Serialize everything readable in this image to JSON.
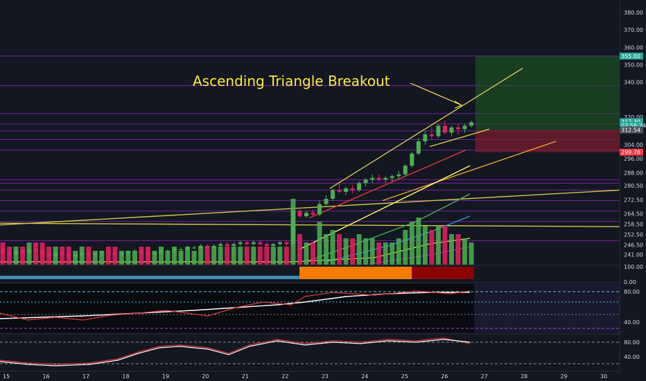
{
  "chart_data": {
    "type": "candlestick",
    "annotation": "Ascending Triangle Breakout",
    "price_axis": {
      "range": [
        236,
        384
      ],
      "ticks": [
        380.0,
        370.0,
        360.0,
        350.0,
        340.0,
        320.0,
        304.0,
        296.0,
        288.0,
        280.5,
        272.5,
        264.5,
        258.5,
        252.5,
        246.5,
        241.0
      ]
    },
    "price_tags": [
      {
        "value": 355.0,
        "label": "355.00",
        "color": "#26a69a"
      },
      {
        "value": 317.3,
        "label": "317.30",
        "color": "#26a69a"
      },
      {
        "value": 315.2,
        "label": "02:56:24",
        "color": "#26a69a"
      },
      {
        "value": 312.54,
        "label": "312.54",
        "color": "#4a4e5a"
      },
      {
        "value": 299.78,
        "label": "299.78",
        "color": "#f23645"
      }
    ],
    "x_axis": {
      "labels": [
        "15",
        "16",
        "17",
        "18",
        "19",
        "20",
        "21",
        "22",
        "23",
        "24",
        "25",
        "26",
        "27",
        "28",
        "29",
        "30"
      ]
    },
    "horizontal_levels": [
      355,
      338,
      322,
      316,
      312,
      307,
      301,
      284,
      282,
      278,
      272,
      266,
      260,
      249
    ],
    "candles": [
      [
        244,
        245,
        241,
        242
      ],
      [
        242,
        243,
        240,
        241
      ],
      [
        241,
        243,
        240,
        243
      ],
      [
        243,
        244,
        241,
        242
      ],
      [
        242,
        245,
        241,
        244
      ],
      [
        244,
        246,
        242,
        243
      ],
      [
        243,
        244,
        240,
        241
      ],
      [
        241,
        242,
        239,
        240
      ],
      [
        240,
        242,
        239,
        242
      ],
      [
        242,
        243,
        240,
        241
      ],
      [
        241,
        242,
        239,
        240
      ],
      [
        240,
        241,
        239,
        241
      ],
      [
        241,
        243,
        240,
        242
      ],
      [
        242,
        243,
        240,
        241
      ],
      [
        241,
        242,
        240,
        242
      ],
      [
        242,
        243,
        241,
        243
      ],
      [
        243,
        244,
        241,
        242
      ],
      [
        242,
        243,
        240,
        241
      ],
      [
        241,
        242,
        240,
        242
      ],
      [
        242,
        243,
        241,
        243
      ],
      [
        243,
        244,
        242,
        243
      ],
      [
        243,
        244,
        241,
        242
      ],
      [
        242,
        243,
        240,
        241
      ],
      [
        241,
        242,
        240,
        242
      ],
      [
        242,
        244,
        241,
        243
      ],
      [
        243,
        244,
        242,
        243
      ],
      [
        243,
        245,
        242,
        244
      ],
      [
        244,
        245,
        243,
        244
      ],
      [
        244,
        246,
        243,
        245
      ],
      [
        245,
        246,
        244,
        245
      ],
      [
        245,
        247,
        244,
        246
      ],
      [
        246,
        247,
        244,
        245
      ],
      [
        245,
        247,
        244,
        246
      ],
      [
        246,
        248,
        245,
        247
      ],
      [
        247,
        248,
        245,
        246
      ],
      [
        246,
        248,
        245,
        247
      ],
      [
        247,
        249,
        246,
        248
      ],
      [
        248,
        249,
        246,
        247
      ],
      [
        247,
        249,
        246,
        248
      ],
      [
        248,
        249,
        246,
        247
      ],
      [
        247,
        248,
        245,
        246
      ],
      [
        246,
        248,
        245,
        247
      ],
      [
        247,
        249,
        246,
        248
      ],
      [
        248,
        249,
        246,
        247
      ],
      [
        247,
        268,
        246,
        266
      ],
      [
        266,
        268,
        262,
        263
      ],
      [
        263,
        266,
        262,
        265
      ],
      [
        265,
        267,
        263,
        264
      ],
      [
        264,
        272,
        263,
        270
      ],
      [
        270,
        275,
        269,
        273
      ],
      [
        273,
        279,
        272,
        278
      ],
      [
        278,
        282,
        276,
        277
      ],
      [
        277,
        280,
        275,
        279
      ],
      [
        279,
        281,
        276,
        278
      ],
      [
        278,
        283,
        277,
        282
      ],
      [
        282,
        285,
        280,
        284
      ],
      [
        284,
        287,
        282,
        285
      ],
      [
        285,
        287,
        283,
        284
      ],
      [
        284,
        286,
        282,
        285
      ],
      [
        285,
        287,
        283,
        286
      ],
      [
        286,
        289,
        284,
        287
      ],
      [
        287,
        293,
        286,
        292
      ],
      [
        292,
        300,
        291,
        299
      ],
      [
        299,
        308,
        298,
        306
      ],
      [
        306,
        312,
        304,
        310
      ],
      [
        310,
        314,
        307,
        309
      ],
      [
        309,
        316,
        308,
        315
      ],
      [
        315,
        318,
        310,
        311
      ],
      [
        311,
        315,
        309,
        314
      ],
      [
        314,
        316,
        310,
        313
      ],
      [
        313,
        316,
        311,
        315
      ],
      [
        315,
        318,
        314,
        317
      ]
    ],
    "sub_indicators": [
      {
        "name": "volume_oscillator",
        "ticks": [
          100.0,
          0.0
        ]
      },
      {
        "name": "stoch_rsi_1",
        "ticks": [
          80.0,
          40.0
        ]
      },
      {
        "name": "stoch_rsi_2",
        "ticks": [
          80.0,
          40.0
        ]
      }
    ],
    "colors": {
      "background": "#131722",
      "up": "#4caf50",
      "down": "#e91e63",
      "level": "#7b1fa2",
      "trend": "#d4c84a",
      "annotation": "#ffeb3b"
    },
    "projection": {
      "target_top": 355,
      "entry": 312.54,
      "stop": 299.78,
      "target_color": "#1b5e20",
      "stop_color": "#7f1d2b"
    }
  }
}
